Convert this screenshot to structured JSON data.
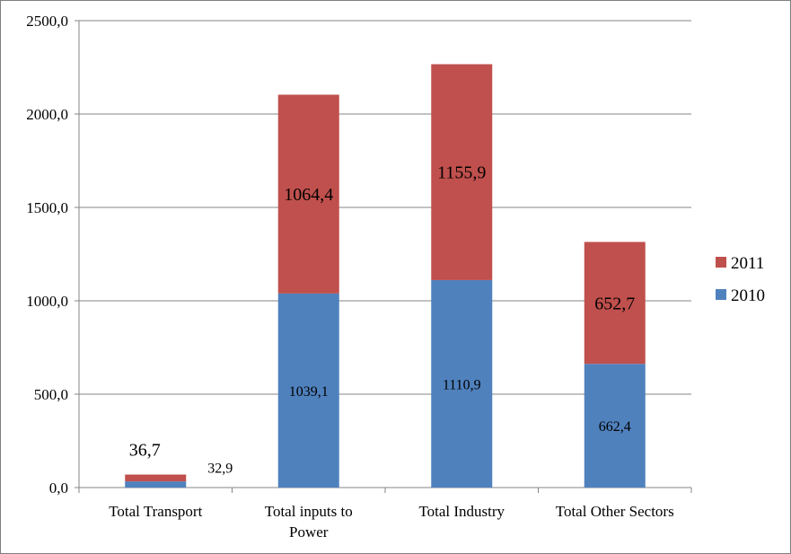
{
  "chart_data": {
    "type": "bar",
    "stacked": true,
    "categories": [
      "Total Transport",
      "Total inputs to Power",
      "Total Industry",
      "Total Other Sectors"
    ],
    "category_lines": [
      [
        "Total Transport"
      ],
      [
        "Total inputs to",
        "Power"
      ],
      [
        "Total Industry"
      ],
      [
        "Total Other Sectors"
      ]
    ],
    "series": [
      {
        "name": "2010",
        "values": [
          32.9,
          1039.1,
          1110.9,
          662.4
        ],
        "labels": [
          "32,9",
          "1039,1",
          "1110,9",
          "662,4"
        ],
        "color": "#4f81bd"
      },
      {
        "name": "2011",
        "values": [
          36.7,
          1064.4,
          1155.9,
          652.7
        ],
        "labels": [
          "36,7",
          "1064,4",
          "1155,9",
          "652,7"
        ],
        "color": "#c0504d"
      }
    ],
    "ylim": [
      0,
      2500
    ],
    "yticks": [
      0,
      500,
      1000,
      1500,
      2000,
      2500
    ],
    "ytick_labels": [
      "0,0",
      "500,0",
      "1000,0",
      "1500,0",
      "2000,0",
      "2500,0"
    ],
    "grid": true,
    "legend_position": "right",
    "legend_order": [
      "2011",
      "2010"
    ],
    "title": "",
    "xlabel": "",
    "ylabel": ""
  }
}
